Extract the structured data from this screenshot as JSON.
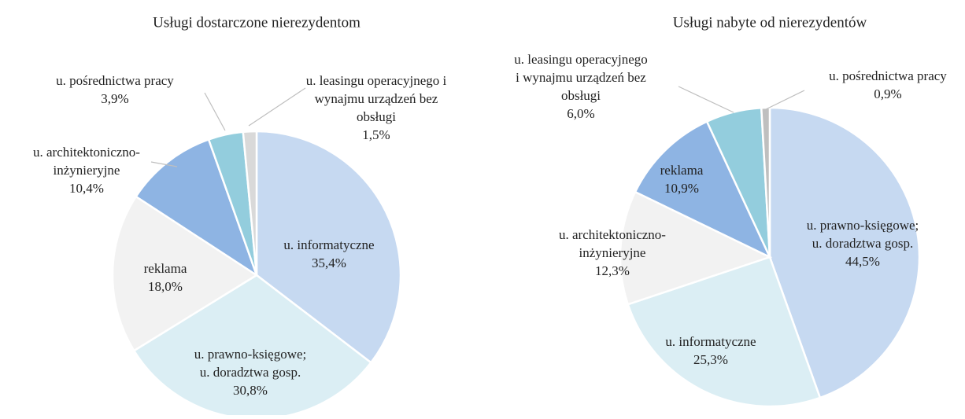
{
  "chart_data": [
    {
      "type": "pie",
      "title": "Usługi dostarczone nierezydentom",
      "categories": [
        [
          "u. informatyczne"
        ],
        [
          "u. prawno-księgowe;",
          "u. doradztwa gosp."
        ],
        [
          "reklama"
        ],
        [
          "u. architektoniczno-",
          "inżynieryjne"
        ],
        [
          "u. pośrednictwa pracy"
        ],
        [
          "u. leasingu operacyjnego i",
          "wynajmu urządzeń bez",
          "obsługi"
        ]
      ],
      "values": [
        35.4,
        30.8,
        18.0,
        10.4,
        3.9,
        1.5
      ],
      "value_labels": [
        "35,4%",
        "30,8%",
        "18,0%",
        "10,4%",
        "3,9%",
        "1,5%"
      ],
      "colors": [
        "#c6d9f1",
        "#dbeef4",
        "#f2f2f2",
        "#8eb4e3",
        "#93cddd",
        "#d9d9d9"
      ]
    },
    {
      "type": "pie",
      "title": "Usługi nabyte od nierezydentów",
      "categories": [
        [
          "u. prawno-księgowe;",
          "u. doradztwa gosp."
        ],
        [
          "u. informatyczne"
        ],
        [
          "u. architektoniczno-",
          "inżynieryjne"
        ],
        [
          "reklama"
        ],
        [
          "u. leasingu operacyjnego",
          "i wynajmu urządzeń bez",
          "obsługi"
        ],
        [
          "u. pośrednictwa pracy"
        ]
      ],
      "values": [
        44.5,
        25.3,
        12.3,
        10.9,
        6.0,
        0.9
      ],
      "value_labels": [
        "44,5%",
        "25,3%",
        "12,3%",
        "10,9%",
        "6,0%",
        "0,9%"
      ],
      "colors": [
        "#c6d9f1",
        "#dbeef4",
        "#f2f2f2",
        "#8eb4e3",
        "#93cddd",
        "#bfbfbf"
      ]
    }
  ]
}
